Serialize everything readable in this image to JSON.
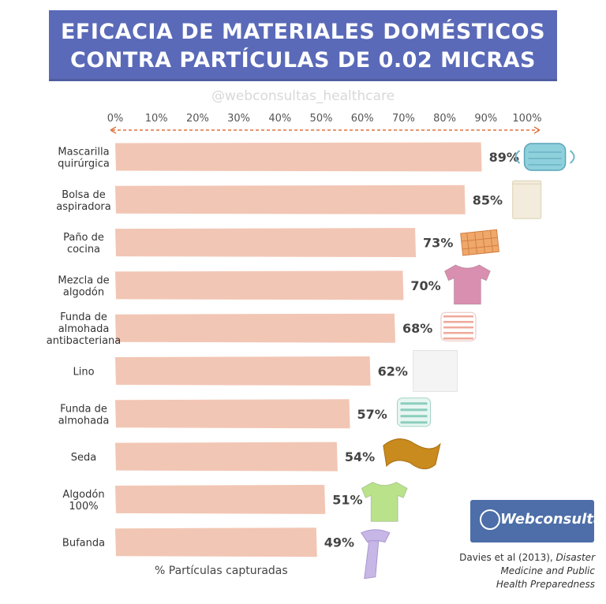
{
  "title": {
    "line1": "EFICACIA DE MATERIALES DOMÉSTICOS",
    "line2": "CONTRA PARTÍCULAS DE 0.02 MICRAS"
  },
  "handle": "@webconsultas_healthcare",
  "logo": {
    "text": "Webconsultas"
  },
  "source": {
    "plain": "Davies et al (2013),",
    "italic_1": "Disaster",
    "italic_2": "Medicine and Public",
    "italic_3": "Health Preparedness"
  },
  "chart_data": {
    "type": "bar",
    "orientation": "horizontal",
    "categories": [
      [
        "Mascarilla",
        "quirúrgica"
      ],
      [
        "Bolsa de",
        "aspiradora"
      ],
      [
        "Paño de",
        "cocina"
      ],
      [
        "Mezcla de",
        "algodón"
      ],
      [
        "Funda de",
        "almohada",
        "antibacteriana"
      ],
      [
        "Lino"
      ],
      [
        "Funda de",
        "almohada"
      ],
      [
        "Seda"
      ],
      [
        "Algodón",
        "100%"
      ],
      [
        "Bufanda"
      ]
    ],
    "values": [
      89,
      85,
      73,
      70,
      68,
      62,
      57,
      54,
      51,
      49
    ],
    "value_labels": [
      "89%",
      "85%",
      "73%",
      "70%",
      "68%",
      "62%",
      "57%",
      "54%",
      "51%",
      "49%"
    ],
    "icons": [
      "surgical-mask-icon",
      "vacuum-bag-icon",
      "kitchen-towel-icon",
      "tshirt-icon",
      "striped-pillow-icon",
      "linen-cloth-icon",
      "pillow-icon",
      "silk-cloth-icon",
      "tshirt-icon",
      "scarf-icon"
    ],
    "xticks": [
      "0%",
      "10%",
      "20%",
      "30%",
      "40%",
      "50%",
      "60%",
      "70%",
      "80%",
      "90%",
      "100%"
    ],
    "xlim": [
      0,
      100
    ],
    "xlabel": "% Partículas capturadas",
    "colors": {
      "bar": "#f2c6b4",
      "axis_arrow": "#e0723c",
      "title_bg": "#5a6ab8"
    }
  }
}
